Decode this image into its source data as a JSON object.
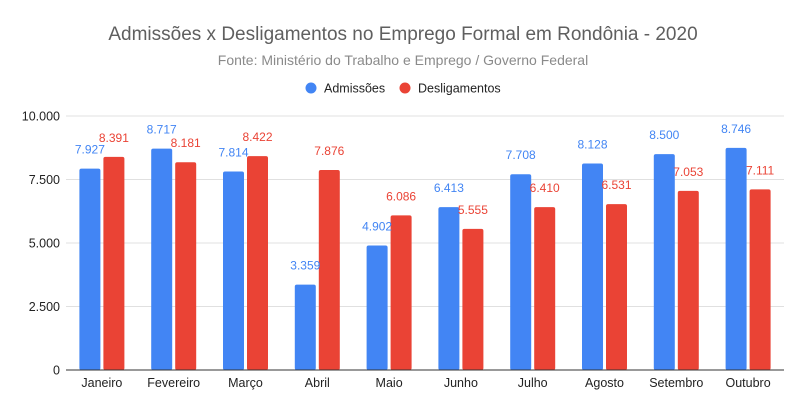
{
  "chart_data": {
    "type": "bar",
    "title": "Admissões x Desligamentos no Emprego Formal em Rondônia - 2020",
    "subtitle": "Fonte: Ministério do Trabalho e Emprego / Governo Federal",
    "xlabel": "",
    "ylabel": "",
    "categories": [
      "Janeiro",
      "Fevereiro",
      "Março",
      "Abril",
      "Maio",
      "Junho",
      "Julho",
      "Agosto",
      "Setembro",
      "Outubro"
    ],
    "series": [
      {
        "name": "Admissões",
        "color": "#4285f4",
        "values": [
          7927,
          8717,
          7814,
          3359,
          4902,
          6413,
          7708,
          8128,
          8500,
          8746
        ],
        "labels": [
          "7.927",
          "8.717",
          "7.814",
          "3.359",
          "4.902",
          "6.413",
          "7.708",
          "8.128",
          "8.500",
          "8.746"
        ]
      },
      {
        "name": "Desligamentos",
        "color": "#ea4335",
        "values": [
          8391,
          8181,
          8422,
          7876,
          6086,
          5555,
          6410,
          6531,
          7053,
          7111
        ],
        "labels": [
          "8.391",
          "8.181",
          "8.422",
          "7.876",
          "6.086",
          "5.555",
          "6.410",
          "6.531",
          "7.053",
          "7.111"
        ]
      }
    ],
    "ylim": [
      0,
      10000
    ],
    "yticks": [
      0,
      2500,
      5000,
      7500,
      10000
    ],
    "ytick_labels": [
      "0",
      "2.500",
      "5.000",
      "7.500",
      "10.000"
    ],
    "grid": true,
    "legend_position": "top-center",
    "colors": {
      "gridline": "#e0e0e0",
      "baseline": "#333333"
    }
  }
}
